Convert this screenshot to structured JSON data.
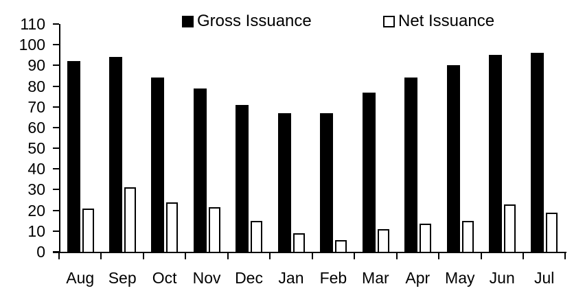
{
  "chart_data": {
    "type": "bar",
    "title": "",
    "xlabel": "",
    "ylabel": "",
    "categories": [
      "Aug",
      "Sep",
      "Oct",
      "Nov",
      "Dec",
      "Jan",
      "Feb",
      "Mar",
      "Apr",
      "May",
      "Jun",
      "Jul"
    ],
    "series": [
      {
        "name": "Gross Issuance",
        "values": [
          92,
          94,
          84,
          79,
          71,
          67,
          67,
          77,
          84,
          90,
          95,
          96
        ],
        "fill": "#000000",
        "stroke": "#000000",
        "swatch": "filled-black-square-icon"
      },
      {
        "name": "Net Issuance",
        "values": [
          21,
          31,
          24,
          21.5,
          15,
          9,
          5.5,
          11,
          13.5,
          15,
          23,
          19
        ],
        "fill": "#ffffff",
        "stroke": "#000000",
        "swatch": "outlined-white-square-icon"
      }
    ],
    "ylim": [
      0,
      110
    ],
    "yticks": [
      0,
      10,
      20,
      30,
      40,
      50,
      60,
      70,
      80,
      90,
      100,
      110
    ],
    "grid": false,
    "legend_position": "top",
    "axis_color": "#000000",
    "background": "#ffffff"
  }
}
